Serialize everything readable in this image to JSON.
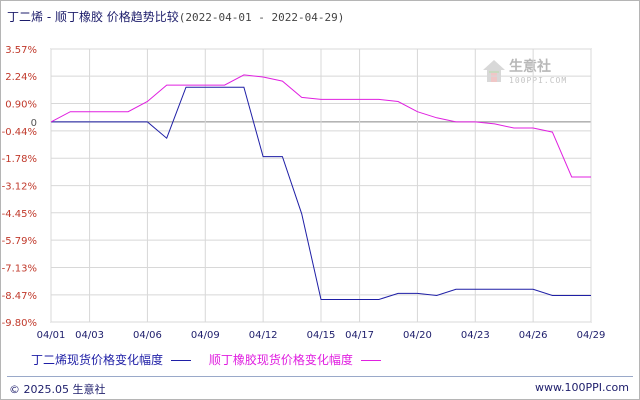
{
  "title": {
    "text": "丁二烯 - 顺丁橡胶 价格趋势比较",
    "range": "(2022-04-01 - 2022-04-29)"
  },
  "watermark": {
    "name": "生意社",
    "url": "100PPI.COM"
  },
  "footer": {
    "copyright": "© 2025.05 生意社",
    "site": "www.100PPI.com"
  },
  "colors": {
    "series_butadiene": "#1f1fa6",
    "series_br": "#e020e0",
    "grid": "#d8d8d8",
    "zero_line": "#888888",
    "axis_text": "#c0392b",
    "xaxis_text": "#1d1d6b"
  },
  "chart_data": {
    "type": "line",
    "x": [
      "04/01",
      "04/02",
      "04/03",
      "04/04",
      "04/05",
      "04/06",
      "04/07",
      "04/08",
      "04/09",
      "04/10",
      "04/11",
      "04/12",
      "04/13",
      "04/14",
      "04/15",
      "04/16",
      "04/17",
      "04/18",
      "04/19",
      "04/20",
      "04/21",
      "04/22",
      "04/23",
      "04/24",
      "04/25",
      "04/26",
      "04/27",
      "04/28",
      "04/29"
    ],
    "x_tick_labels": [
      "04/01",
      "04/03",
      "04/06",
      "04/09",
      "04/12",
      "04/15",
      "04/17",
      "04/20",
      "04/23",
      "04/26",
      "04/29"
    ],
    "y_tick_labels": [
      "3.57%",
      "2.24%",
      "0.90%",
      "0",
      "-0.44%",
      "-1.78%",
      "-3.12%",
      "-4.45%",
      "-5.79%",
      "-7.13%",
      "-8.47%",
      "-9.80%"
    ],
    "y_tick_values": [
      3.57,
      2.24,
      0.9,
      0,
      -0.44,
      -1.78,
      -3.12,
      -4.45,
      -5.79,
      -7.13,
      -8.47,
      -9.8
    ],
    "ylim": [
      -9.8,
      3.57
    ],
    "grid": true,
    "legend_position": "bottom",
    "series": [
      {
        "name": "丁二烯现货价格变化幅度",
        "values": [
          0,
          0,
          0,
          0,
          0,
          0,
          -0.8,
          1.7,
          1.7,
          1.7,
          1.7,
          -1.7,
          -1.7,
          -4.5,
          -8.7,
          -8.7,
          -8.7,
          -8.7,
          -8.4,
          -8.4,
          -8.5,
          -8.2,
          -8.2,
          -8.2,
          -8.2,
          -8.2,
          -8.5,
          -8.5,
          -8.5
        ]
      },
      {
        "name": "顺丁橡胶现货价格变化幅度",
        "values": [
          0,
          0.5,
          0.5,
          0.5,
          0.5,
          1.0,
          1.8,
          1.8,
          1.8,
          1.8,
          2.3,
          2.2,
          2.0,
          1.2,
          1.1,
          1.1,
          1.1,
          1.1,
          1.0,
          0.5,
          0.2,
          0.0,
          0.0,
          -0.1,
          -0.3,
          -0.3,
          -0.5,
          -2.7,
          -2.7
        ]
      }
    ]
  }
}
